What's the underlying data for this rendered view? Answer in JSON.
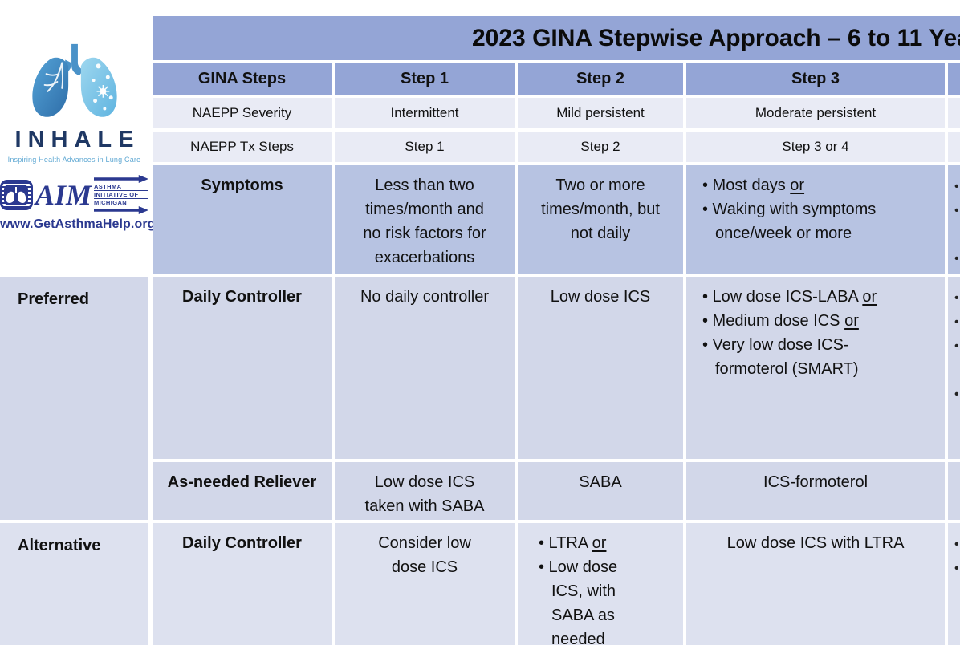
{
  "title": "2023 GINA Stepwise Approach – 6 to 11 Yea",
  "logos": {
    "inhale": {
      "wordmark": "INHALE",
      "tagline": "Inspiring Health Advances in Lung Care"
    },
    "aim": {
      "acronym": "AIM",
      "org_line1": "Asthma",
      "org_line2": "Initiative of",
      "org_line3": "Michigan",
      "website": "www.GetAsthmaHelp.org"
    }
  },
  "columns": {
    "gina": "GINA Steps",
    "step1": "Step 1",
    "step2": "Step 2",
    "step3": "Step 3"
  },
  "groups": {
    "preferred": "Preferred",
    "alternative": "Alternative"
  },
  "rows": {
    "severity": {
      "label": "NAEPP Severity",
      "step1": "Intermittent",
      "step2": "Mild persistent",
      "step3": "Moderate persistent"
    },
    "tx": {
      "label": "NAEPP Tx Steps",
      "step1": "Step 1",
      "step2": "Step 2",
      "step3": "Step 3 or 4"
    },
    "symptoms": {
      "label": "Symptoms",
      "step1": "Less than two times/month and no risk factors for exacerbations",
      "step2": "Two or more times/month, but not daily",
      "step3": [
        {
          "text": "Most days",
          "or": true
        },
        {
          "text": "Waking with symptoms once/week or more",
          "or": false
        }
      ]
    },
    "daily_controller": {
      "label": "Daily Controller",
      "step1": "No daily controller",
      "step2": "Low dose ICS",
      "step3": [
        {
          "text": "Low dose ICS-LABA",
          "or": true
        },
        {
          "text": "Medium dose ICS",
          "or": true
        },
        {
          "text": "Very low dose ICS-formoterol (SMART)",
          "or": false
        }
      ]
    },
    "reliever": {
      "label": "As-needed Reliever",
      "step1": "Low dose ICS taken with SABA",
      "step2": "SABA",
      "step3": "ICS-formoterol"
    },
    "alt_controller": {
      "label": "Daily Controller",
      "step1": "Consider low dose ICS",
      "step2": [
        {
          "text": "LTRA",
          "or": true
        },
        {
          "text": "Low dose ICS, with SABA as needed",
          "or": false
        }
      ],
      "step3": "Low dose ICS with LTRA"
    }
  },
  "partial_step4": {
    "symptoms": "•\n•\n\n•",
    "daily_controller": "•\n•\n•\n\n•",
    "alt_controller": "•\n•"
  },
  "colors": {
    "header_blue": "#94A5D6",
    "symptoms_blue": "#B7C3E2",
    "naepp_light": "#E9EBF5",
    "preferred_fill": "#D2D7E9",
    "alternative_fill": "#DDE1EF",
    "logo_navy": "#1F3864",
    "aim_blue": "#2B3990",
    "tagline_blue": "#5FA8D3"
  }
}
